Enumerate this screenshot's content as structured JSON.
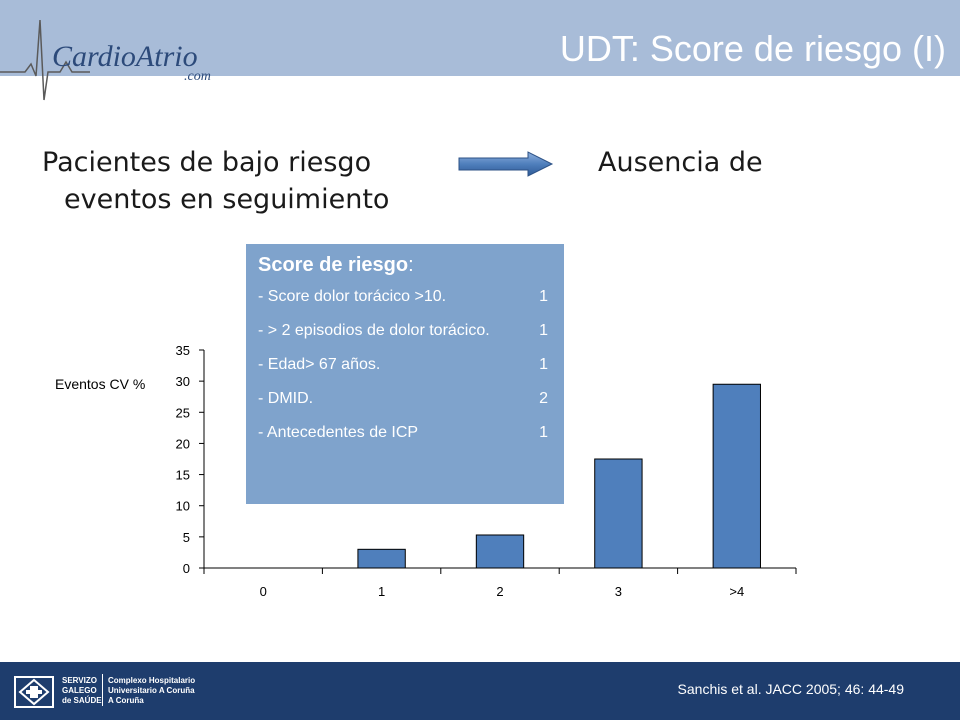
{
  "header": {
    "logo_text": "CardioAtrio",
    "logo_sub": ".com",
    "title": "UDT: Score de riesgo (I)"
  },
  "subtitle": {
    "part1": "Pacientes de bajo riesgo",
    "part2": "Ausencia de",
    "part3": "eventos en seguimiento"
  },
  "score_box": {
    "title": "Score de riesgo",
    "title_colon": ":",
    "items": [
      {
        "label": "- Score dolor torácico >10.",
        "points": "1"
      },
      {
        "label": "- > 2 episodios de dolor torácico.",
        "points": "1"
      },
      {
        "label": "- Edad> 67 años.",
        "points": "1"
      },
      {
        "label": "- DMID.",
        "points": "2"
      },
      {
        "label": "- Antecedentes de ICP",
        "points": "1"
      }
    ]
  },
  "chart_data": {
    "type": "bar",
    "categories": [
      "0",
      "1",
      "2",
      "3",
      ">4"
    ],
    "values": [
      0,
      3,
      5.3,
      17.5,
      29.5
    ],
    "ylabel": "Eventos CV %",
    "xlabel": "",
    "ylim": [
      0,
      35
    ],
    "yticks": [
      0,
      5,
      10,
      15,
      20,
      25,
      30,
      35
    ],
    "bar_color": "#4f7fbc",
    "grid": false
  },
  "footer": {
    "org_line1": "SERVIZO",
    "org_line2": "GALEGO",
    "org_line3": "de SAÚDE",
    "hosp_line1": "Complexo Hospitalario",
    "hosp_line2": "Universitario A Coruña",
    "hosp_line3": "A Coruña",
    "citation": "Sanchis et al. JACC 2005; 46: 44-49"
  },
  "colors": {
    "header_bg": "#a8bcd8",
    "footer_bg": "#1e3d6d",
    "box_bg": "#7fa3cc",
    "accent": "#4f7fbc"
  }
}
